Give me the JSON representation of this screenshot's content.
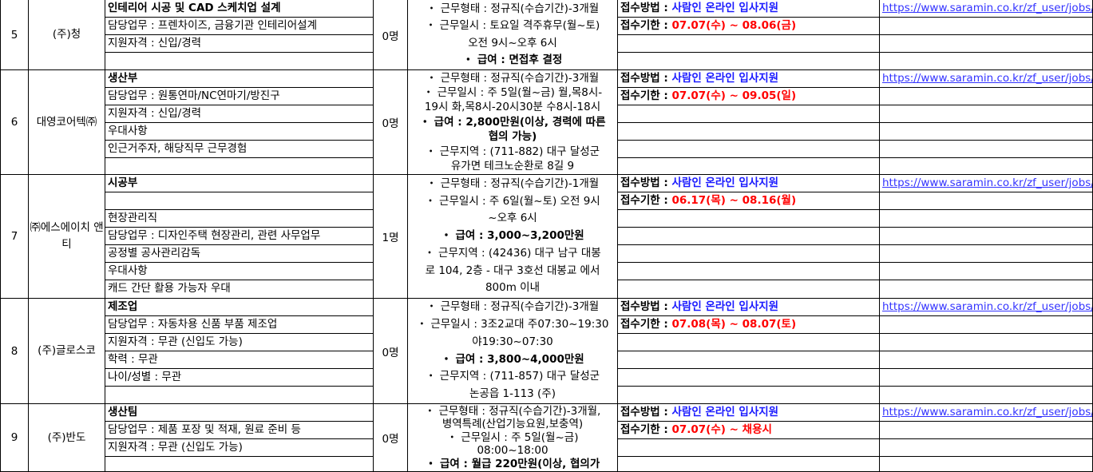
{
  "colors": {
    "apply_method": "#1a1aff",
    "deadline": "#ff0000",
    "link": "#3333ff"
  },
  "labels": {
    "apply_method": "접수방법 : ",
    "deadline": "접수기한 : "
  },
  "rows": [
    {
      "num": "5",
      "company": "(주)청",
      "count": "0명",
      "lines": [
        {
          "text": "인테리어 시공 및 CAD 스케치업 설계",
          "bold": true
        },
        {
          "text": "담당업무 : 프렌차이즈, 금융기관 인테리어설계"
        },
        {
          "text": "지원자격 : 신입/경력"
        },
        {
          "text": ""
        }
      ],
      "conditions": [
        {
          "text": "・ 근무형태 : 정규직(수습기간)-3개월"
        },
        {
          "text": "・ 근무일시 : 토요일 격주휴무(월~토)"
        },
        {
          "text": "오전 9시~오후 6시"
        },
        {
          "text": "・ 급여 : 면접후 결정",
          "bold": true
        }
      ],
      "apply_method": "사람인 온라인 입사지원",
      "deadline": "07.07(수) ~ 08.06(금)",
      "link": "https://www.saramin.co.kr/zf_user/jobs/"
    },
    {
      "num": "6",
      "company": "대영코어텍㈜",
      "count": "0명",
      "lines": [
        {
          "text": "생산부",
          "bold": true
        },
        {
          "text": "담당업무 : 원통연마/NC연마기/방진구"
        },
        {
          "text": "지원자격 : 신입/경력"
        },
        {
          "text": "우대사항"
        },
        {
          "text": "인근거주자, 해당직무 근무경험"
        },
        {
          "text": ""
        }
      ],
      "conditions": [
        {
          "text": "・ 근무형태 : 정규직(수습기간)-3개월"
        },
        {
          "text": "・ 근무일시 : 주 5일(월~금) 월,목8시-"
        },
        {
          "text": "19시 화,목8시-20시30분 수8시-18시"
        },
        {
          "text": "・ 급여 : 2,800만원(이상, 경력에 따른",
          "bold": true
        },
        {
          "text": "협의 가능)",
          "bold": true
        },
        {
          "text": "・ 근무지역 : (711-882) 대구 달성군"
        },
        {
          "text": "유가면 테크노순환로 8길 9"
        }
      ],
      "apply_method": "사람인 온라인 입사지원",
      "deadline": " 07.07(수) ~ 09.05(일)",
      "link": "https://www.saramin.co.kr/zf_user/jobs/"
    },
    {
      "num": "7",
      "company": "㈜에스에이치 앤티",
      "count": "1명",
      "lines": [
        {
          "text": "시공부",
          "bold": true
        },
        {
          "text": ""
        },
        {
          "text": "현장관리직"
        },
        {
          "text": "담당업무 : 디자인주택 현장관리, 관련 사무업무"
        },
        {
          "text": "공정별 공사관리감독"
        },
        {
          "text": "우대사항"
        },
        {
          "text": "캐드 간단 활용 가능자 우대"
        }
      ],
      "conditions": [
        {
          "text": "・ 근무형태 : 정규직(수습기간)-1개월"
        },
        {
          "text": "・ 근무일시 : 주 6일(월~토) 오전 9시"
        },
        {
          "text": "~오후 6시"
        },
        {
          "text": "・ 급여 : 3,000~3,200만원",
          "bold": true
        },
        {
          "text": "・ 근무지역 : (42436) 대구 남구 대봉"
        },
        {
          "text": "로 104, 2층 - 대구 3호선 대봉교 에서"
        },
        {
          "text": "800m 이내"
        }
      ],
      "apply_method": "사람인 온라인 입사지원",
      "deadline": "06.17(목) ~ 08.16(월)",
      "link": "https://www.saramin.co.kr/zf_user/jobs/"
    },
    {
      "num": "8",
      "company": "(주)글로스코",
      "count": "0명",
      "lines": [
        {
          "text": "제조업",
          "bold": true
        },
        {
          "text": "담당업무 : 자동차용 신품 부품 제조업"
        },
        {
          "text": "지원자격 : 무관 (신입도 가능)"
        },
        {
          "text": "학력 : 무관"
        },
        {
          "text": "나이/성별 : 무관"
        },
        {
          "text": ""
        }
      ],
      "conditions": [
        {
          "text": "・ 근무형태 : 정규직(수습기간)-3개월"
        },
        {
          "text": "・ 근무일시 : 3조2교대 주07:30~19:30"
        },
        {
          "text": "야19:30~07:30"
        },
        {
          "text": "・ 급여 : 3,800~4,000만원",
          "bold": true
        },
        {
          "text": "・ 근무지역 : (711-857) 대구 달성군"
        },
        {
          "text": "논공읍 1-113 (주)"
        }
      ],
      "apply_method": "사람인 온라인 입사지원",
      "deadline": "07.08(목) ~ 08.07(토)",
      "link": "https://www.saramin.co.kr/zf_user/jobs/"
    },
    {
      "num": "9",
      "company": "(주)반도",
      "count": "0명",
      "lines": [
        {
          "text": "생산팀",
          "bold": true
        },
        {
          "text": "담당업무 : 제품 포장 및 적재, 원료 준비 등"
        },
        {
          "text": "지원자격 : 무관 (신입도 가능)"
        },
        {
          "text": ""
        }
      ],
      "conditions": [
        {
          "text": "・ 근무형태 : 정규직(수습기간)-3개월,"
        },
        {
          "text": "병역특례(산업기능요원,보충역)"
        },
        {
          "text": "・ 근무일시 : 주 5일(월~금)"
        },
        {
          "text": "08:00~18:00"
        },
        {
          "text": "・ 급여 : 월급 220만원(이상, 협의가",
          "bold": true
        }
      ],
      "apply_method": "사람인 온라인 입사지원",
      "deadline": "07.07(수) ~ 채용시",
      "link": "https://www.saramin.co.kr/zf_user/jobs/"
    }
  ]
}
